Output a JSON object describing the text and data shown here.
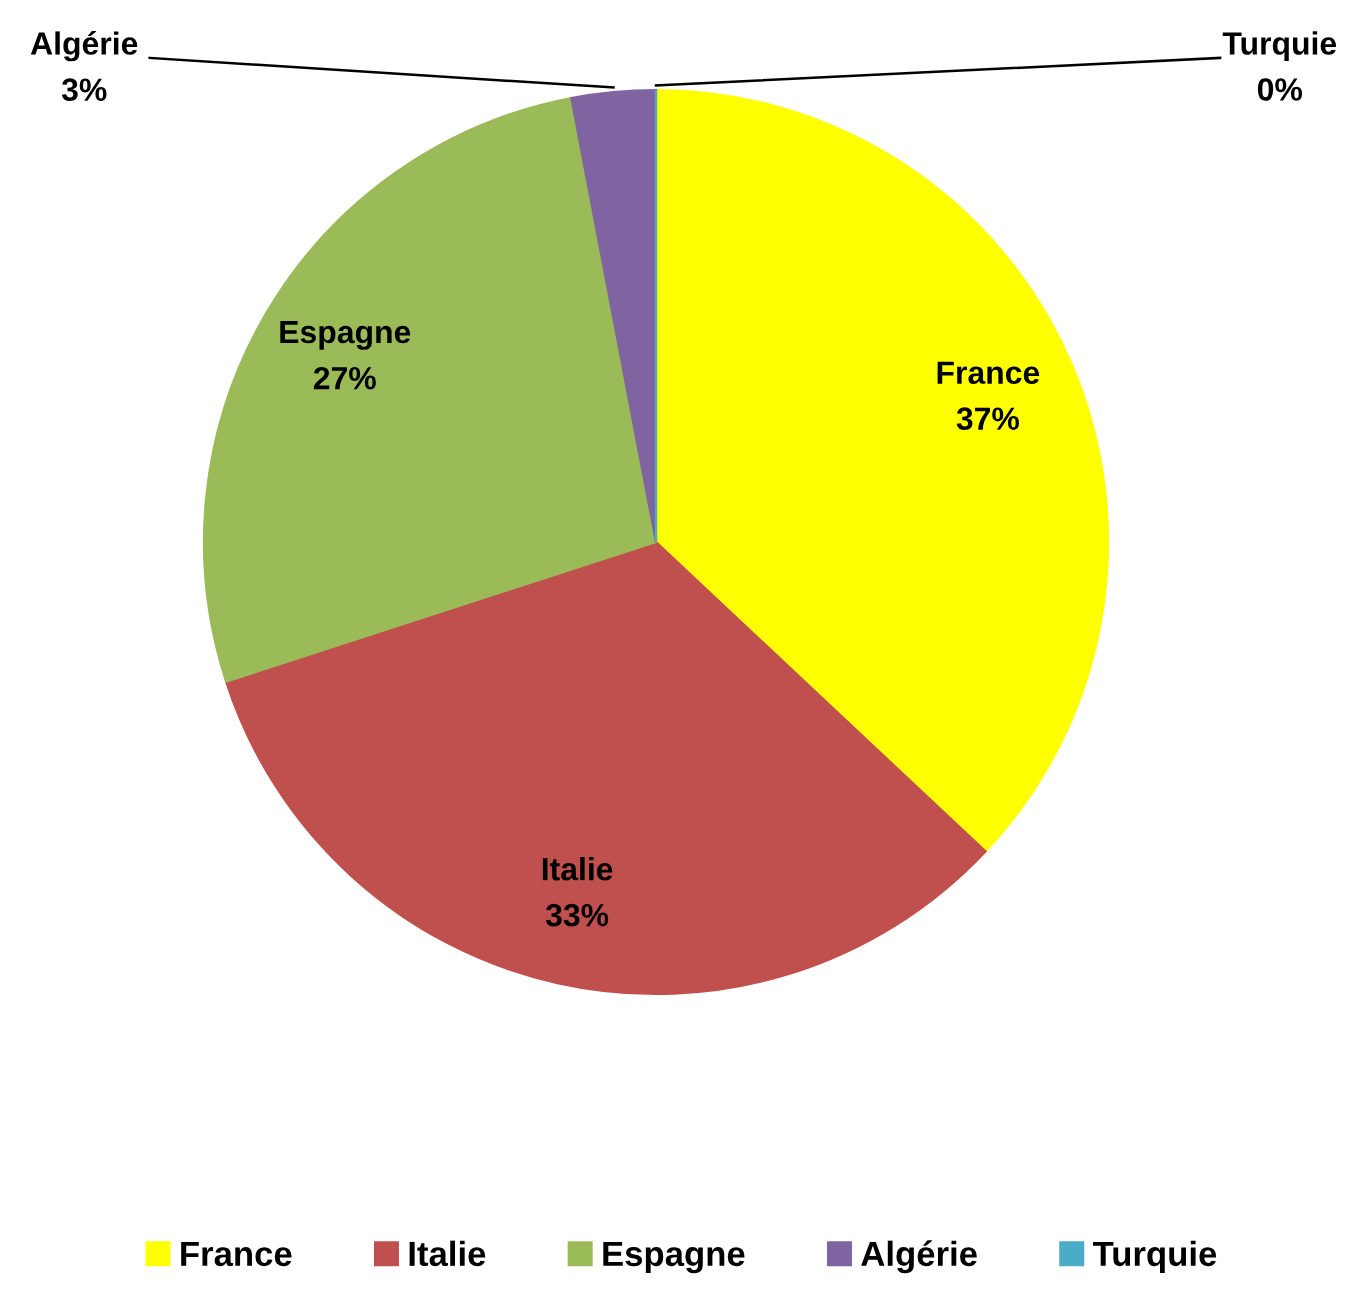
{
  "chart_data": {
    "type": "pie",
    "categories": [
      "France",
      "Italie",
      "Espagne",
      "Algérie",
      "Turquie"
    ],
    "values": [
      37,
      33,
      27,
      3,
      0
    ],
    "colors": [
      "#ffff00",
      "#c0504d",
      "#9bbb59",
      "#8064a2",
      "#4bacc6"
    ],
    "value_labels": [
      "37%",
      "33%",
      "27%",
      "3%",
      "0%"
    ],
    "legend": "bottom"
  }
}
